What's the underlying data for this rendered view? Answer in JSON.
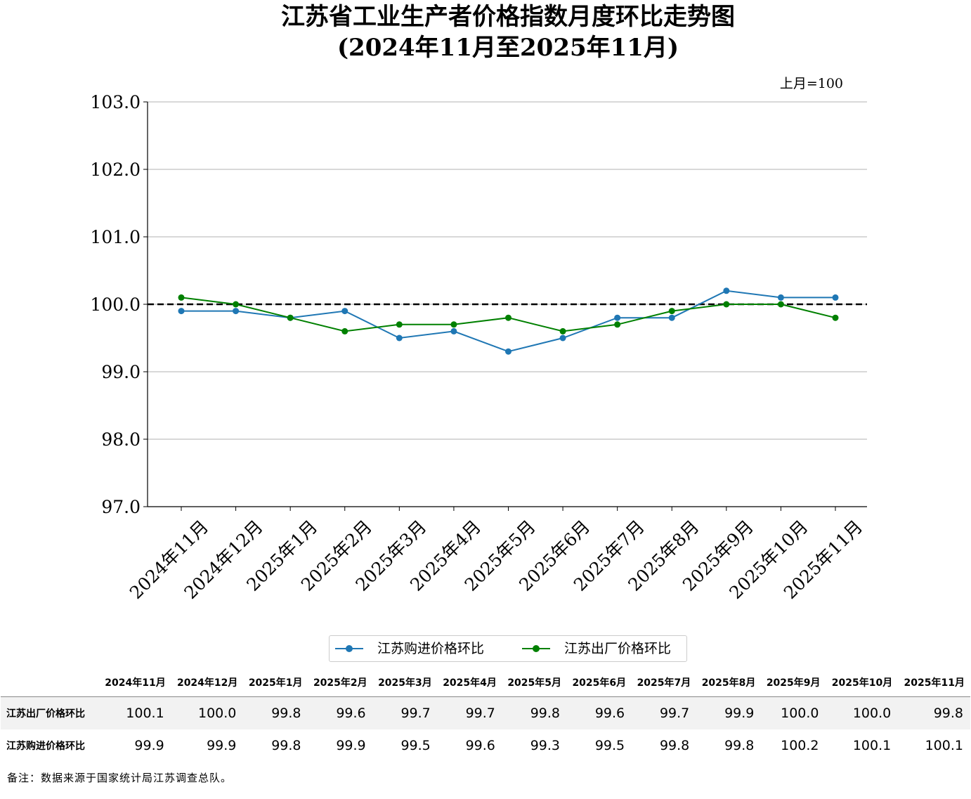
{
  "title": "江苏省工业生产者价格指数月度环比走势图",
  "subtitle": "(2024年11月至2025年11月)",
  "unit_note": "上月=100",
  "chart_data": {
    "type": "line",
    "categories": [
      "2024年11月",
      "2024年12月",
      "2025年1月",
      "2025年2月",
      "2025年3月",
      "2025年4月",
      "2025年5月",
      "2025年6月",
      "2025年7月",
      "2025年8月",
      "2025年9月",
      "2025年10月",
      "2025年11月"
    ],
    "series": [
      {
        "name": "江苏购进价格环比",
        "color": "#1f77b4",
        "values": [
          99.9,
          99.9,
          99.8,
          99.9,
          99.5,
          99.6,
          99.3,
          99.5,
          99.8,
          99.8,
          100.2,
          100.1,
          100.1
        ]
      },
      {
        "name": "江苏出厂价格环比",
        "color": "#008000",
        "values": [
          100.1,
          100.0,
          99.8,
          99.6,
          99.7,
          99.7,
          99.8,
          99.6,
          99.7,
          99.9,
          100.0,
          100.0,
          99.8
        ]
      }
    ],
    "ylim": [
      97.0,
      103.0
    ],
    "yticks": [
      "97.0",
      "98.0",
      "99.0",
      "100.0",
      "101.0",
      "102.0",
      "103.0"
    ],
    "reference_line": 100.0,
    "grid": "horizontal",
    "legend": "bottom-center"
  },
  "table": {
    "headers": [
      "2024年11月",
      "2024年12月",
      "2025年1月",
      "2025年2月",
      "2025年3月",
      "2025年4月",
      "2025年5月",
      "2025年6月",
      "2025年7月",
      "2025年8月",
      "2025年9月",
      "2025年10月",
      "2025年11月"
    ],
    "rows": [
      {
        "label": "江苏出厂价格环比",
        "values": [
          "100.1",
          "100.0",
          "99.8",
          "99.6",
          "99.7",
          "99.7",
          "99.8",
          "99.6",
          "99.7",
          "99.9",
          "100.0",
          "100.0",
          "99.8"
        ]
      },
      {
        "label": "江苏购进价格环比",
        "values": [
          "99.9",
          "99.9",
          "99.8",
          "99.9",
          "99.5",
          "99.6",
          "99.3",
          "99.5",
          "99.8",
          "99.8",
          "100.2",
          "100.1",
          "100.1"
        ]
      }
    ]
  },
  "note": "备注：数据来源于国家统计局江苏调查总队。"
}
